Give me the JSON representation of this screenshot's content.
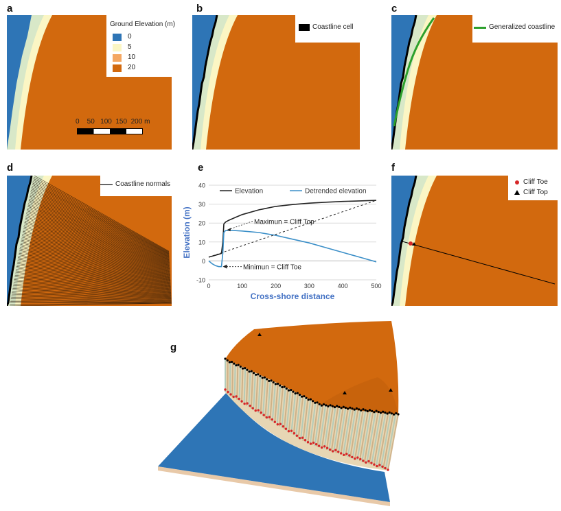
{
  "panels": {
    "a": {
      "label": "a",
      "legend_title": "Ground Elevation (m)",
      "legend_items": [
        {
          "label": "0",
          "color": "#2e75b6"
        },
        {
          "label": "5",
          "color": "#fbf6c4"
        },
        {
          "label": "10",
          "color": "#f4a762"
        },
        {
          "label": "20",
          "color": "#d2690e"
        }
      ],
      "scale_labels": "0    50   100  150  200 m"
    },
    "b": {
      "label": "b",
      "legend_label": "Coastline cell"
    },
    "c": {
      "label": "c",
      "legend_label": "Generalized coastline"
    },
    "d": {
      "label": "d",
      "legend_label": "Coastline normals"
    },
    "e": {
      "label": "e"
    },
    "f": {
      "label": "f",
      "legend_toe": "Cliff Toe",
      "legend_top": "Cliff Top"
    },
    "g": {
      "label": "g"
    }
  },
  "colors": {
    "sea": "#2e75b6",
    "land": "#d2690e",
    "beach": "#fbf6c4",
    "coastline": "#000000",
    "generalized": "#2ca02c",
    "cliff_toe": "#d62728",
    "cliff_top": "#000000",
    "elevation_line": "#222222",
    "detrended_line": "#3b8fc8"
  },
  "chart_data": {
    "type": "line",
    "title": "",
    "xlabel": "Cross-shore distance",
    "ylabel": "Elevation (m)",
    "xlim": [
      0,
      500
    ],
    "ylim": [
      -10,
      40
    ],
    "xticks": [
      0,
      100,
      200,
      300,
      400,
      500
    ],
    "yticks": [
      -10,
      0,
      10,
      20,
      30,
      40
    ],
    "series": [
      {
        "name": "Elevation",
        "x": [
          0,
          10,
          20,
          30,
          38,
          42,
          45,
          50,
          60,
          80,
          100,
          150,
          200,
          250,
          300,
          350,
          400,
          450,
          500
        ],
        "y": [
          2,
          2.5,
          3,
          3.5,
          4,
          10,
          19.5,
          20.5,
          21.5,
          23,
          24.5,
          27,
          28.8,
          29.8,
          30.5,
          31,
          31.4,
          31.7,
          32
        ]
      },
      {
        "name": "Detrended elevation",
        "x": [
          0,
          10,
          20,
          30,
          38,
          42,
          45,
          50,
          60,
          80,
          100,
          150,
          200,
          250,
          300,
          350,
          400,
          450,
          500
        ],
        "y": [
          0,
          -1.5,
          -2.5,
          -3,
          -3,
          4,
          15,
          16,
          16.2,
          16,
          15.8,
          15,
          13.5,
          11.5,
          9.5,
          7,
          4.5,
          2,
          -0.5
        ]
      }
    ],
    "trend_line": {
      "x": [
        0,
        500
      ],
      "y": [
        2,
        32
      ]
    },
    "annotations": [
      {
        "text": "Maximun = Cliff Top",
        "x": 50,
        "y": 16
      },
      {
        "text": "Minimun = Cliff Toe",
        "x": 38,
        "y": -3
      }
    ],
    "legend": "top"
  }
}
